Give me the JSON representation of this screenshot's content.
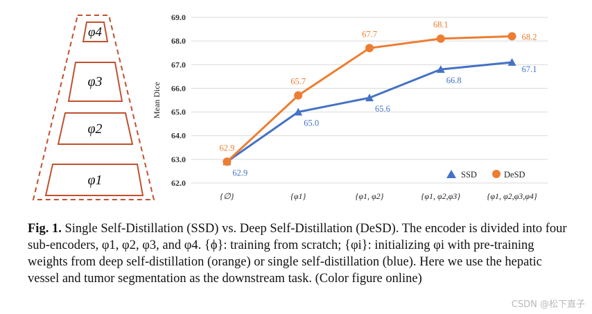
{
  "encoder_diagram": {
    "blocks": [
      "φ4",
      "φ3",
      "φ2",
      "φ1"
    ]
  },
  "chart_data": {
    "type": "line",
    "categories": [
      "{∅}",
      "{φ1}",
      "{φ1, φ2}",
      "{φ1, φ2,φ3}",
      "{φ1, φ2,φ3,φ4}"
    ],
    "ylabel": "Mean Dice",
    "xlabel": "",
    "title": "",
    "ylim": [
      62.0,
      69.0
    ],
    "yticks": [
      "62.0",
      "63.0",
      "64.0",
      "65.0",
      "66.0",
      "67.0",
      "68.0",
      "69.0"
    ],
    "grid": true,
    "legend_position": "bottom-right",
    "series": [
      {
        "name": "SSD",
        "values": [
          62.9,
          65.0,
          65.6,
          66.8,
          67.1
        ],
        "labels": [
          "62.9",
          "65.0",
          "65.6",
          "66.8",
          "67.1"
        ],
        "color": "#4472c4",
        "marker": "triangle"
      },
      {
        "name": "DeSD",
        "values": [
          62.9,
          65.7,
          67.7,
          68.1,
          68.2
        ],
        "labels": [
          "62.9",
          "65.7",
          "67.7",
          "68.1",
          "68.2"
        ],
        "color": "#ed7d31",
        "marker": "circle"
      }
    ]
  },
  "caption": {
    "label": "Fig. 1.",
    "text": "Single Self-Distillation (SSD) vs. Deep Self-Distillation (DeSD). The encoder is divided into four sub-encoders, φ1, φ2, φ3, and φ4. {ϕ}: training from scratch; {φi}: initializing φi with pre-training weights from deep self-distillation (orange) or single self-distillation (blue). Here we use the hepatic vessel and tumor segmentation as the downstream task. (Color figure online)"
  },
  "watermark": "CSDN @松下直子"
}
